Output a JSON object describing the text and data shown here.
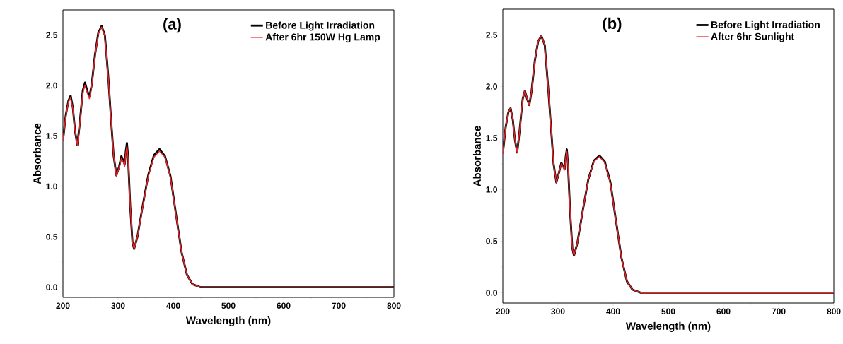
{
  "chart_data": [
    {
      "type": "line",
      "annotations": [
        "(a)"
      ],
      "xlabel": "Wavelength (nm)",
      "ylabel": "Absorbance",
      "xlim": [
        200,
        800
      ],
      "ylim": [
        -0.1,
        2.75
      ],
      "xticks": [
        200,
        300,
        400,
        500,
        600,
        700,
        800
      ],
      "yticks": [
        {
          "value": 0,
          "label": "0.0"
        },
        {
          "value": 0.5,
          "label": "0.5"
        },
        {
          "value": 1,
          "label": "1.0"
        },
        {
          "value": 1.5,
          "label": "1.5"
        },
        {
          "value": 2,
          "label": "2.0"
        },
        {
          "value": 2.5,
          "label": "2.5"
        }
      ],
      "legend": "top right",
      "x": [
        200,
        205,
        210,
        214,
        218,
        222,
        226,
        230,
        236,
        240,
        244,
        248,
        252,
        258,
        264,
        270,
        276,
        282,
        288,
        292,
        297,
        302,
        306,
        310,
        312,
        314,
        316,
        318,
        322,
        326,
        329,
        335,
        345,
        355,
        365,
        375,
        385,
        395,
        405,
        415,
        425,
        435,
        450,
        500,
        600,
        700,
        800
      ],
      "series": [
        {
          "name": "Before Light Irradiation",
          "color": "#000000",
          "values": [
            1.45,
            1.7,
            1.85,
            1.9,
            1.78,
            1.55,
            1.41,
            1.6,
            1.95,
            2.03,
            1.95,
            1.89,
            2.0,
            2.3,
            2.52,
            2.59,
            2.5,
            2.1,
            1.6,
            1.3,
            1.11,
            1.2,
            1.3,
            1.25,
            1.22,
            1.35,
            1.43,
            1.3,
            0.8,
            0.45,
            0.38,
            0.5,
            0.82,
            1.12,
            1.31,
            1.37,
            1.3,
            1.1,
            0.72,
            0.35,
            0.12,
            0.03,
            0.0,
            0.0,
            0.0,
            0.0,
            0.0
          ]
        },
        {
          "name": "After 6hr 150W Hg Lamp",
          "color": "#e8262b",
          "values": [
            1.45,
            1.69,
            1.84,
            1.88,
            1.77,
            1.55,
            1.41,
            1.59,
            1.93,
            2.0,
            1.93,
            1.87,
            1.99,
            2.29,
            2.51,
            2.58,
            2.49,
            2.09,
            1.6,
            1.3,
            1.1,
            1.19,
            1.28,
            1.23,
            1.2,
            1.33,
            1.4,
            1.28,
            0.8,
            0.45,
            0.38,
            0.5,
            0.81,
            1.11,
            1.29,
            1.35,
            1.29,
            1.09,
            0.71,
            0.35,
            0.12,
            0.03,
            0.0,
            0.0,
            0.0,
            0.0,
            0.0
          ]
        }
      ]
    },
    {
      "type": "line",
      "annotations": [
        "(b)"
      ],
      "xlabel": "Wavelength (nm)",
      "ylabel": "Absorbance",
      "xlim": [
        200,
        800
      ],
      "ylim": [
        -0.1,
        2.75
      ],
      "xticks": [
        200,
        300,
        400,
        500,
        600,
        700,
        800
      ],
      "yticks": [
        {
          "value": 0,
          "label": "0.0"
        },
        {
          "value": 0.5,
          "label": "0.5"
        },
        {
          "value": 1,
          "label": "1.0"
        },
        {
          "value": 1.5,
          "label": "1.5"
        },
        {
          "value": 2,
          "label": "2.0"
        },
        {
          "value": 2.5,
          "label": "2.5"
        }
      ],
      "legend": "top right",
      "x": [
        200,
        205,
        210,
        214,
        218,
        222,
        226,
        230,
        236,
        240,
        244,
        248,
        252,
        258,
        264,
        270,
        276,
        282,
        288,
        292,
        297,
        302,
        306,
        310,
        312,
        314,
        316,
        318,
        322,
        326,
        329,
        335,
        345,
        355,
        365,
        375,
        385,
        395,
        405,
        415,
        425,
        435,
        450,
        500,
        600,
        700,
        800
      ],
      "series": [
        {
          "name": "Before Light Irradiation",
          "color": "#000000",
          "values": [
            1.35,
            1.6,
            1.75,
            1.79,
            1.68,
            1.48,
            1.36,
            1.55,
            1.88,
            1.96,
            1.88,
            1.82,
            1.95,
            2.25,
            2.44,
            2.49,
            2.4,
            2.0,
            1.55,
            1.25,
            1.07,
            1.17,
            1.26,
            1.22,
            1.2,
            1.32,
            1.39,
            1.25,
            0.78,
            0.43,
            0.36,
            0.48,
            0.8,
            1.1,
            1.28,
            1.33,
            1.27,
            1.07,
            0.7,
            0.34,
            0.11,
            0.03,
            0.0,
            0.0,
            0.0,
            0.0,
            0.0
          ]
        },
        {
          "name": "After 6hr Sunlight",
          "color": "#e8262b",
          "values": [
            1.35,
            1.6,
            1.75,
            1.79,
            1.68,
            1.48,
            1.36,
            1.55,
            1.88,
            1.96,
            1.88,
            1.82,
            1.95,
            2.25,
            2.44,
            2.49,
            2.4,
            2.0,
            1.55,
            1.25,
            1.07,
            1.17,
            1.25,
            1.21,
            1.19,
            1.31,
            1.37,
            1.24,
            0.78,
            0.43,
            0.36,
            0.48,
            0.8,
            1.1,
            1.27,
            1.32,
            1.26,
            1.06,
            0.7,
            0.34,
            0.11,
            0.03,
            0.0,
            0.0,
            0.0,
            0.0,
            0.0
          ]
        }
      ]
    }
  ]
}
